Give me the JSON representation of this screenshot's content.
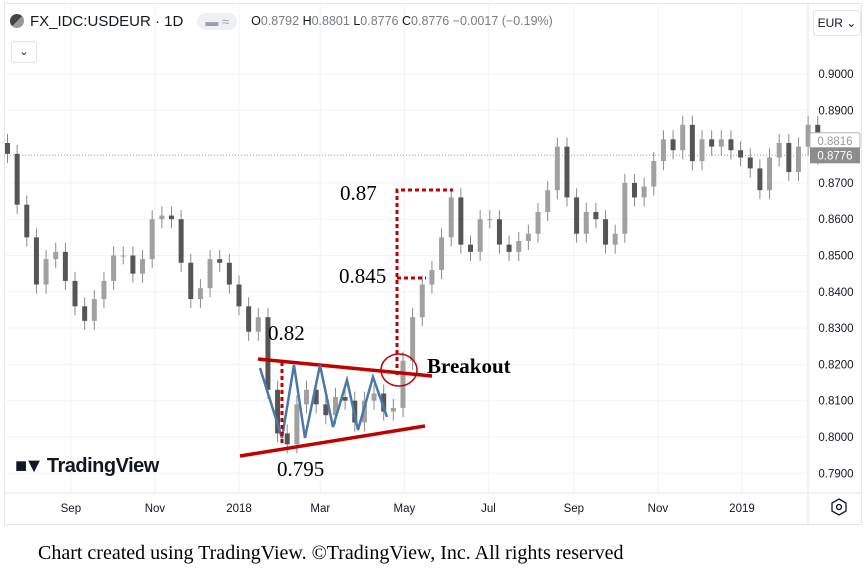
{
  "header": {
    "symbol": "FX_IDC:USDEUR · 1D",
    "pill": "▬ ≈",
    "ohlc": {
      "o_label": "O",
      "o": "0.8792",
      "h_label": "H",
      "h": "0.8801",
      "l_label": "L",
      "l": "0.8776",
      "c_label": "C",
      "c": "0.8776",
      "change": "−0.0017 (−0.19%)"
    },
    "collapse_icon": "chevron-down-icon",
    "currency": "EUR ⌄"
  },
  "logo": "TradingView",
  "caption": "Chart created using TradingView. ©TradingView, Inc. All rights reserved",
  "annotations": {
    "upper": "0.82",
    "lower": "0.795",
    "target1": "0.845",
    "target2": "0.87",
    "breakout": "Breakout"
  },
  "colors": {
    "candle": "#555555",
    "trendline": "#c00000",
    "zigzag": "#4a78a8",
    "grid": "#f0f3fa"
  },
  "chart_data": {
    "type": "candlestick",
    "title": "FX_IDC:USDEUR · 1D",
    "ylim": [
      0.785,
      0.905
    ],
    "y_ticks": [
      "0.9000",
      "0.8900",
      "0.8700",
      "0.8600",
      "0.8500",
      "0.8400",
      "0.8300",
      "0.8200",
      "0.8100",
      "0.8000",
      "0.7900"
    ],
    "x_ticks": [
      {
        "label": "Sep",
        "date": "2017-09-01"
      },
      {
        "label": "Nov",
        "date": "2017-11-01"
      },
      {
        "label": "2018",
        "date": "2018-01-01"
      },
      {
        "label": "Mar",
        "date": "2018-03-01"
      },
      {
        "label": "May",
        "date": "2018-05-01"
      },
      {
        "label": "Jul",
        "date": "2018-07-01"
      },
      {
        "label": "Sep",
        "date": "2018-09-01"
      },
      {
        "label": "Nov",
        "date": "2018-11-01"
      },
      {
        "label": "2019",
        "date": "2019-01-01"
      }
    ],
    "price_tags": {
      "marker": "0.8816",
      "last": "0.8776"
    },
    "dates": [
      "2017-07-17",
      "2017-07-24",
      "2017-07-31",
      "2017-08-07",
      "2017-08-14",
      "2017-08-21",
      "2017-08-28",
      "2017-09-04",
      "2017-09-11",
      "2017-09-18",
      "2017-09-25",
      "2017-10-02",
      "2017-10-09",
      "2017-10-16",
      "2017-10-23",
      "2017-10-30",
      "2017-11-06",
      "2017-11-13",
      "2017-11-20",
      "2017-11-27",
      "2017-12-04",
      "2017-12-11",
      "2017-12-18",
      "2017-12-25",
      "2018-01-01",
      "2018-01-08",
      "2018-01-15",
      "2018-01-22",
      "2018-01-29",
      "2018-02-05",
      "2018-02-12",
      "2018-02-19",
      "2018-02-26",
      "2018-03-05",
      "2018-03-12",
      "2018-03-19",
      "2018-03-26",
      "2018-04-02",
      "2018-04-09",
      "2018-04-16",
      "2018-04-23",
      "2018-04-30",
      "2018-05-07",
      "2018-05-14",
      "2018-05-21",
      "2018-05-28",
      "2018-06-04",
      "2018-06-11",
      "2018-06-18",
      "2018-06-25",
      "2018-07-02",
      "2018-07-09",
      "2018-07-16",
      "2018-07-23",
      "2018-07-30",
      "2018-08-06",
      "2018-08-13",
      "2018-08-20",
      "2018-08-27",
      "2018-09-03",
      "2018-09-10",
      "2018-09-17",
      "2018-09-24",
      "2018-10-01",
      "2018-10-08",
      "2018-10-15",
      "2018-10-22",
      "2018-10-29",
      "2018-11-05",
      "2018-11-12",
      "2018-11-19",
      "2018-11-26",
      "2018-12-03",
      "2018-12-10",
      "2018-12-17",
      "2018-12-24",
      "2018-12-31",
      "2019-01-07",
      "2019-01-14",
      "2019-01-21",
      "2019-01-28",
      "2019-02-04",
      "2019-02-11",
      "2019-02-18",
      "2019-02-25"
    ],
    "closes": [
      0.878,
      0.864,
      0.855,
      0.842,
      0.849,
      0.851,
      0.843,
      0.836,
      0.832,
      0.838,
      0.843,
      0.85,
      0.85,
      0.845,
      0.849,
      0.86,
      0.861,
      0.86,
      0.848,
      0.838,
      0.841,
      0.849,
      0.848,
      0.842,
      0.836,
      0.829,
      0.833,
      0.813,
      0.801,
      0.798,
      0.809,
      0.813,
      0.809,
      0.806,
      0.811,
      0.81,
      0.804,
      0.81,
      0.812,
      0.807,
      0.808,
      0.821,
      0.833,
      0.842,
      0.846,
      0.855,
      0.866,
      0.853,
      0.851,
      0.86,
      0.86,
      0.853,
      0.851,
      0.854,
      0.856,
      0.862,
      0.868,
      0.88,
      0.866,
      0.856,
      0.862,
      0.86,
      0.853,
      0.856,
      0.87,
      0.866,
      0.869,
      0.876,
      0.882,
      0.879,
      0.886,
      0.876,
      0.882,
      0.88,
      0.882,
      0.879,
      0.877,
      0.874,
      0.868,
      0.877,
      0.881,
      0.873,
      0.88,
      0.886,
      0.8776
    ]
  }
}
